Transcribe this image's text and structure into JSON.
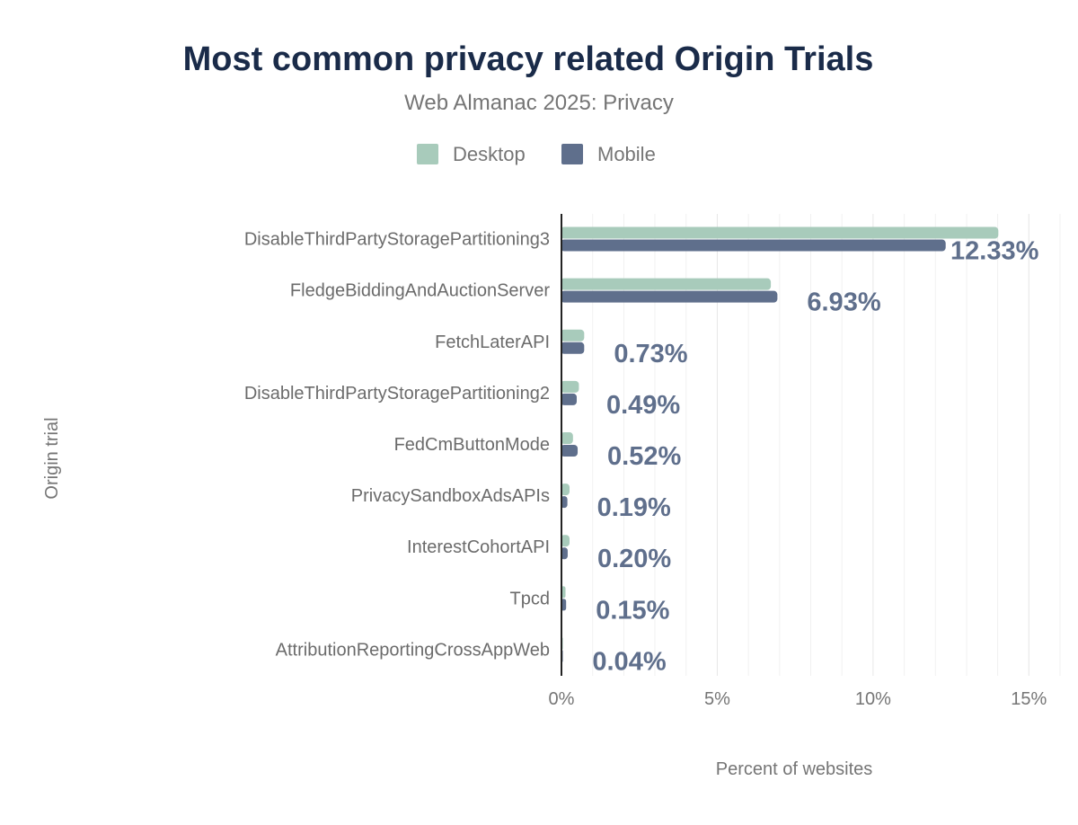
{
  "chart_data": {
    "type": "bar",
    "orientation": "horizontal",
    "title": "Most common privacy related Origin Trials",
    "subtitle": "Web Almanac 2025: Privacy",
    "xlabel": "Percent of websites",
    "ylabel": "Origin trial",
    "xlim": [
      0,
      16
    ],
    "xticks": [
      {
        "value": 0,
        "label": "0%"
      },
      {
        "value": 5,
        "label": "5%"
      },
      {
        "value": 10,
        "label": "10%"
      },
      {
        "value": 15,
        "label": "15%"
      }
    ],
    "grid": true,
    "legend_position": "top",
    "categories": [
      "DisableThirdPartyStoragePartitioning3",
      "FledgeBiddingAndAuctionServer",
      "FetchLaterAPI",
      "DisableThirdPartyStoragePartitioning2",
      "FedCmButtonMode",
      "PrivacySandboxAdsAPIs",
      "InterestCohortAPI",
      "Tpcd",
      "AttributionReportingCrossAppWeb"
    ],
    "series": [
      {
        "name": "Desktop",
        "color": "#a8cbbb",
        "values": [
          14.02,
          6.72,
          0.73,
          0.56,
          0.37,
          0.26,
          0.26,
          0.13,
          0.04
        ]
      },
      {
        "name": "Mobile",
        "color": "#5f6f8c",
        "values": [
          12.33,
          6.93,
          0.73,
          0.49,
          0.52,
          0.19,
          0.2,
          0.15,
          0.04
        ],
        "data_labels": [
          "12.33%",
          "6.93%",
          "0.73%",
          "0.49%",
          "0.52%",
          "0.19%",
          "0.20%",
          "0.15%",
          "0.04%"
        ]
      }
    ]
  }
}
